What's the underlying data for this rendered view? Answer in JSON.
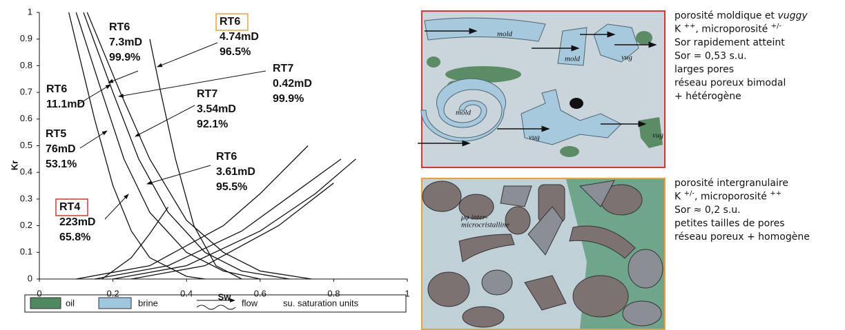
{
  "chart_data": {
    "type": "line",
    "x_label": "Sw",
    "y_label": "Kr",
    "xlim": [
      0,
      1
    ],
    "xticks": [
      0,
      0.2,
      0.4,
      0.6,
      0.8,
      1
    ],
    "ylim": [
      0,
      1
    ],
    "yticks": [
      0,
      0.1,
      0.2,
      0.3,
      0.4,
      0.5,
      0.6,
      0.7,
      0.8,
      0.9,
      1
    ],
    "series": [
      {
        "color": "#111111",
        "x": [
          0.08,
          0.15,
          0.2,
          0.25,
          0.3,
          0.4,
          0.45
        ],
        "values": [
          1,
          0.6,
          0.35,
          0.18,
          0.08,
          0.01,
          0
        ]
      },
      {
        "color": "#111111",
        "x": [
          0.1,
          0.17,
          0.23,
          0.3,
          0.4,
          0.5,
          0.6
        ],
        "values": [
          1,
          0.7,
          0.45,
          0.25,
          0.1,
          0.03,
          0
        ]
      },
      {
        "color": "#111111",
        "x": [
          0.12,
          0.2,
          0.27,
          0.35,
          0.45,
          0.55,
          0.68
        ],
        "values": [
          1,
          0.7,
          0.45,
          0.25,
          0.1,
          0.03,
          0
        ]
      },
      {
        "color": "#111111",
        "x": [
          0.13,
          0.22,
          0.3,
          0.4,
          0.5,
          0.6,
          0.74
        ],
        "values": [
          1,
          0.7,
          0.45,
          0.22,
          0.1,
          0.03,
          0
        ]
      },
      {
        "color": "#111111",
        "x": [
          0.3,
          0.33,
          0.37,
          0.42,
          0.48,
          0.55
        ],
        "values": [
          0.9,
          0.7,
          0.45,
          0.2,
          0.05,
          0
        ]
      },
      {
        "color": "#111111",
        "x": [
          0.1,
          0.3,
          0.5,
          0.6,
          0.73
        ],
        "values": [
          0,
          0.05,
          0.2,
          0.32,
          0.5
        ]
      },
      {
        "color": "#111111",
        "x": [
          0.15,
          0.35,
          0.55,
          0.7,
          0.82
        ],
        "values": [
          0,
          0.05,
          0.18,
          0.33,
          0.45
        ]
      },
      {
        "color": "#111111",
        "x": [
          0.2,
          0.4,
          0.6,
          0.75,
          0.86
        ],
        "values": [
          0,
          0.05,
          0.18,
          0.32,
          0.45
        ]
      },
      {
        "color": "#111111",
        "x": [
          0.25,
          0.45,
          0.65,
          0.8
        ],
        "values": [
          0,
          0.05,
          0.2,
          0.36
        ]
      },
      {
        "color": "#111111",
        "x": [
          0.17,
          0.25,
          0.3,
          0.35
        ],
        "values": [
          0,
          0.08,
          0.17,
          0.27
        ]
      }
    ],
    "annotations": [
      {
        "lines": [
          "RT6",
          "7.3mD",
          "99.9%"
        ]
      },
      {
        "lines": [
          "RT6",
          "4.74mD",
          "96.5%"
        ],
        "box_color": "#f0a030"
      },
      {
        "lines": [
          "RT7",
          "0.42mD",
          "99.9%"
        ]
      },
      {
        "lines": [
          "RT6",
          "11.1mD"
        ]
      },
      {
        "lines": [
          "RT7",
          "3.54mD",
          "92.1%"
        ]
      },
      {
        "lines": [
          "RT5",
          "76mD",
          "53.1%"
        ]
      },
      {
        "lines": [
          "RT6",
          "3.61mD",
          "95.5%"
        ]
      },
      {
        "lines": [
          "RT4",
          "223mD",
          "65.8%"
        ],
        "box_color": "#e03030"
      }
    ],
    "legend": [
      {
        "label": "oil",
        "color": "#4e8a5e"
      },
      {
        "label": "brine",
        "color": "#9ec8de"
      },
      {
        "label": "flow"
      },
      {
        "label": "su. saturation units"
      }
    ]
  },
  "diagrams": [
    {
      "border_color": "#e03030",
      "labels": [
        "mold",
        "mold",
        "vug",
        "mold",
        "vug",
        "vug"
      ],
      "description": [
        [
          {
            "text": "porosité moldique et "
          },
          {
            "text": "vuggy",
            "style": "italic"
          }
        ],
        [
          {
            "text": "K "
          },
          {
            "text": "++",
            "style": "sup"
          },
          {
            "text": ", microporosité "
          },
          {
            "text": "+/-",
            "style": "sup"
          }
        ],
        [
          {
            "text": "Sor rapidement atteint"
          }
        ],
        [
          {
            "text": "Sor = 0,53 s.u."
          }
        ],
        [
          {
            "text": "larges pores"
          }
        ],
        [
          {
            "text": "réseau poreux bimodal"
          }
        ],
        [
          {
            "text": "+ hétérogène"
          }
        ]
      ]
    },
    {
      "border_color": "#f0a030",
      "labels": [
        "μφ inter-",
        "microcristalline"
      ],
      "description": [
        [
          {
            "text": "porosité intergranulaire"
          }
        ],
        [
          {
            "text": "K "
          },
          {
            "text": "+/-",
            "style": "sup"
          },
          {
            "text": ", microporosité "
          },
          {
            "text": "++",
            "style": "sup"
          }
        ],
        [
          {
            "text": "Sor ≈ 0,2 s.u."
          }
        ],
        [
          {
            "text": "petites tailles de pores"
          }
        ],
        [
          {
            "text": "réseau poreux + homogène"
          }
        ]
      ]
    }
  ]
}
